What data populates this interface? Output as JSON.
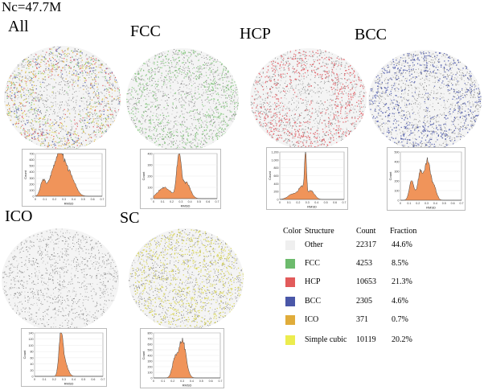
{
  "title": "Nc=47.7M",
  "panels": [
    {
      "id": "all",
      "label": "All",
      "tint": "mixed",
      "histogram": {
        "ylabel": "Count",
        "xlabel": "RMSD",
        "yticks": [
          "700",
          "600",
          "500",
          "400",
          "300",
          "200",
          "100",
          "0"
        ],
        "xticks": [
          "0",
          "0.1",
          "0.2",
          "0.3",
          "0.4",
          "0.5",
          "0.6",
          "0.7"
        ]
      }
    },
    {
      "id": "fcc",
      "label": "FCC",
      "tint": "#7cc576",
      "histogram": {
        "ylabel": "Count",
        "xlabel": "RMSD",
        "yticks": [
          "400",
          "300",
          "200",
          "100",
          "0"
        ],
        "xticks": [
          "0",
          "0.1",
          "0.2",
          "0.3",
          "0.4",
          "0.5",
          "0.6",
          "0.7"
        ]
      }
    },
    {
      "id": "hcp",
      "label": "HCP",
      "tint": "#e0525a",
      "histogram": {
        "ylabel": "Count",
        "xlabel": "RMSD",
        "yticks": [
          "1,200",
          "1,000",
          "800",
          "600",
          "400",
          "200",
          "0"
        ],
        "xticks": [
          "0",
          "0.1",
          "0.2",
          "0.3",
          "0.4",
          "0.5",
          "0.6",
          "0.7"
        ]
      }
    },
    {
      "id": "bcc",
      "label": "BCC",
      "tint": "#4855a8",
      "histogram": {
        "ylabel": "Count",
        "xlabel": "RMSD",
        "yticks": [
          "500",
          "400",
          "300",
          "200",
          "100",
          "0"
        ],
        "xticks": [
          "0",
          "0.1",
          "0.2",
          "0.3",
          "0.4",
          "0.5",
          "0.6",
          "0.7"
        ]
      }
    },
    {
      "id": "ico",
      "label": "ICO",
      "tint": "#bbbbbb",
      "histogram": {
        "ylabel": "Count",
        "xlabel": "RMSD",
        "yticks": [
          "140",
          "120",
          "100",
          "80",
          "60",
          "40",
          "20",
          "0"
        ],
        "xticks": [
          "0",
          "0.1",
          "0.2",
          "0.3",
          "0.4",
          "0.5",
          "0.6",
          "0.7"
        ]
      }
    },
    {
      "id": "sc",
      "label": "SC",
      "tint": "#d6d24a",
      "histogram": {
        "ylabel": "Count",
        "xlabel": "RMSD",
        "yticks": [
          "800",
          "700",
          "600",
          "500",
          "400",
          "300",
          "200",
          "100",
          "0"
        ],
        "xticks": [
          "0",
          "0.1",
          "0.2",
          "0.3",
          "0.4",
          "0.5",
          "0.6",
          "0.7"
        ]
      }
    }
  ],
  "legend": {
    "headers": {
      "color": "Color",
      "structure": "Structure",
      "count": "Count",
      "fraction": "Fraction"
    },
    "rows": [
      {
        "color": "#efefef",
        "structure": "Other",
        "count": "22317",
        "fraction": "44.6%"
      },
      {
        "color": "#6dbb6d",
        "structure": "FCC",
        "count": "4253",
        "fraction": "8.5%"
      },
      {
        "color": "#e25b5b",
        "structure": "HCP",
        "count": "10653",
        "fraction": "21.3%"
      },
      {
        "color": "#4a57a8",
        "structure": "BCC",
        "count": "2305",
        "fraction": "4.6%"
      },
      {
        "color": "#e0ac3a",
        "structure": "ICO",
        "count": "371",
        "fraction": "0.7%"
      },
      {
        "color": "#ecec4e",
        "structure": "Simple cubic",
        "count": "10119",
        "fraction": "20.2%"
      }
    ]
  },
  "histogram_fill": "#f0945a"
}
